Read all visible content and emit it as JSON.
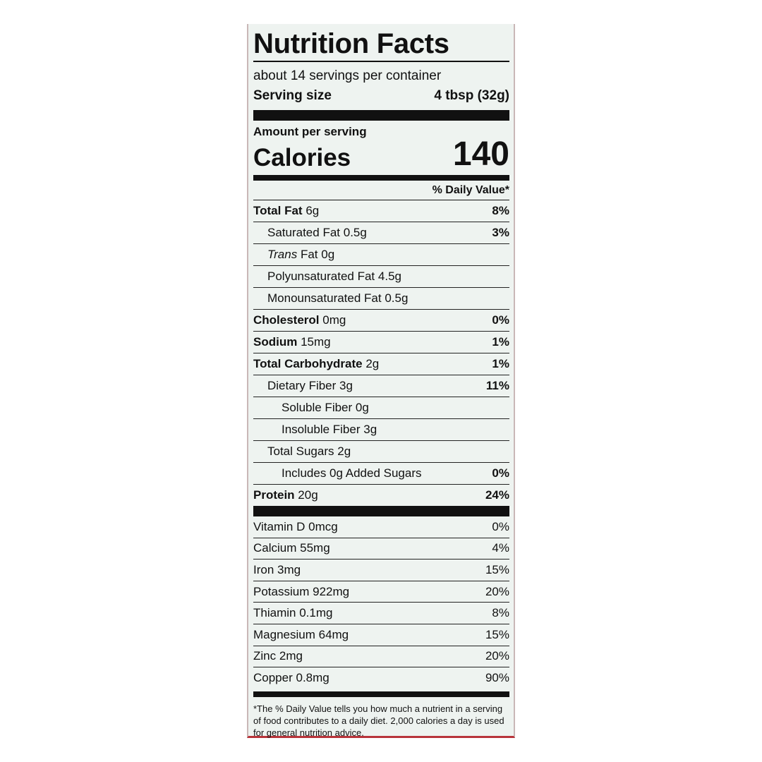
{
  "header": {
    "title": "Nutrition Facts",
    "servings": "about 14 servings per container",
    "serving_size_label": "Serving size",
    "serving_size_value": "4 tbsp (32g)"
  },
  "calories": {
    "amount_label": "Amount per serving",
    "label": "Calories",
    "value": "140"
  },
  "daily_value_header": "% Daily Value*",
  "nutrients": [
    {
      "name": "Total Fat",
      "amount": "6g",
      "dv": "8%",
      "level": 0
    },
    {
      "name": "Saturated Fat",
      "amount": "0.5g",
      "dv": "3%",
      "level": 1
    },
    {
      "italic": "Trans",
      "name": "Fat",
      "amount": "0g",
      "level": 1
    },
    {
      "name": "Polyunsaturated Fat",
      "amount": "4.5g",
      "level": 1
    },
    {
      "name": "Monounsaturated Fat",
      "amount": "0.5g",
      "level": 1
    },
    {
      "name": "Cholesterol",
      "amount": "0mg",
      "dv": "0%",
      "level": 0
    },
    {
      "name": "Sodium",
      "amount": "15mg",
      "dv": "1%",
      "level": 0
    },
    {
      "name": "Total Carbohydrate",
      "amount": "2g",
      "dv": "1%",
      "level": 0
    },
    {
      "name": "Dietary Fiber",
      "amount": "3g",
      "dv": "11%",
      "level": 1
    },
    {
      "name": "Soluble Fiber",
      "amount": "0g",
      "level": 2
    },
    {
      "name": "Insoluble Fiber",
      "amount": "3g",
      "level": 2
    },
    {
      "name": "Total Sugars",
      "amount": "2g",
      "level": 1
    },
    {
      "name": "Includes 0g Added Sugars",
      "dv": "0%",
      "level": 2
    },
    {
      "name": "Protein",
      "amount": "20g",
      "dv": "24%",
      "level": 0
    }
  ],
  "vitamins": [
    {
      "name": "Vitamin D",
      "amount": "0mcg",
      "dv": "0%"
    },
    {
      "name": "Calcium",
      "amount": "55mg",
      "dv": "4%"
    },
    {
      "name": "Iron",
      "amount": "3mg",
      "dv": "15%"
    },
    {
      "name": "Potassium",
      "amount": "922mg",
      "dv": "20%"
    },
    {
      "name": "Thiamin",
      "amount": "0.1mg",
      "dv": "8%"
    },
    {
      "name": "Magnesium",
      "amount": "64mg",
      "dv": "15%"
    },
    {
      "name": "Zinc",
      "amount": "2mg",
      "dv": "20%"
    },
    {
      "name": "Copper",
      "amount": "0.8mg",
      "dv": "90%"
    }
  ],
  "footnote": "*The % Daily Value tells you how much a nutrient in a serving of food contributes to a daily diet. 2,000 calories a day is used for general nutrition advice."
}
